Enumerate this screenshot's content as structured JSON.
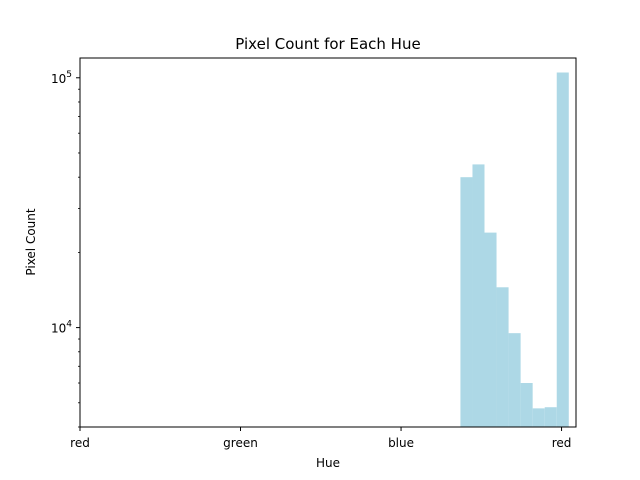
{
  "chart_data": {
    "type": "bar",
    "title": "Pixel Count for Each Hue",
    "xlabel": "Hue",
    "ylabel": "Pixel Count",
    "yscale": "log",
    "ylim": [
      4000,
      120000
    ],
    "xlim": [
      0,
      1.03
    ],
    "x_ticks": [
      {
        "label": "red",
        "value": 0
      },
      {
        "label": "green",
        "value": 0.3333
      },
      {
        "label": "blue",
        "value": 0.6667
      },
      {
        "label": "red",
        "value": 1.0
      }
    ],
    "y_ticks": [
      {
        "base": "10",
        "exp": "4",
        "value": 10000
      },
      {
        "base": "10",
        "exp": "5",
        "value": 100000
      }
    ],
    "bin_width": 0.025,
    "bins": [
      {
        "start": 0.79,
        "value": 40000
      },
      {
        "start": 0.815,
        "value": 45000
      },
      {
        "start": 0.84,
        "value": 24000
      },
      {
        "start": 0.865,
        "value": 14500
      },
      {
        "start": 0.89,
        "value": 9500
      },
      {
        "start": 0.915,
        "value": 6000
      },
      {
        "start": 0.94,
        "value": 4750
      },
      {
        "start": 0.965,
        "value": 4800
      },
      {
        "start": 0.99,
        "value": 105000
      }
    ],
    "bar_color": "#add8e6",
    "grid": false,
    "legend": "none"
  }
}
